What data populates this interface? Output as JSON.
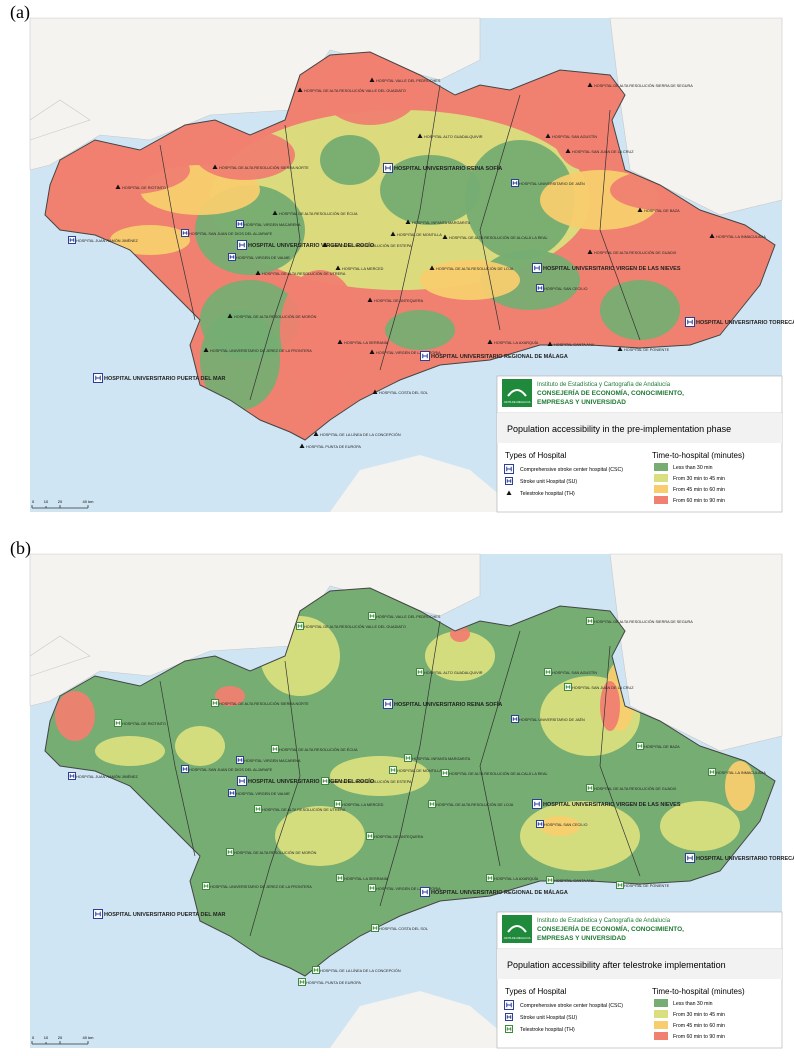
{
  "panels": [
    {
      "label": "(a)",
      "map_title": "Population accessibility in the pre-implementation phase",
      "th_marker": "triangle",
      "scenario": "pre"
    },
    {
      "label": "(b)",
      "map_title": "Population accessibility after telestroke implementation",
      "th_marker": "square",
      "scenario": "post"
    }
  ],
  "institute": {
    "line1": "Instituto de Estadística y Cartografía de Andalucía",
    "line2": "CONSEJERÍA DE ECONOMÍA, CONOCIMIENTO,",
    "line3": "EMPRESAS Y UNIVERSIDAD",
    "logo": "JUNTA DE ANDALUCIA"
  },
  "legend": {
    "types_title": "Types of Hospital",
    "types": [
      {
        "label": "Comprehensive stroke center hospital (CSC)",
        "type": "CSC"
      },
      {
        "label": "Stroke unit Hospital (SU)",
        "type": "SU"
      },
      {
        "label": "Telestroke hospital (TH)",
        "type": "TH"
      }
    ],
    "time_title": "Time-to-hospital (minutes)",
    "time": [
      {
        "label": "Less than 30 min",
        "color": "#76ad72"
      },
      {
        "label": "From 30 min to 45 min",
        "color": "#d9df7e"
      },
      {
        "label": "From 45 min to 60 min",
        "color": "#f8cd6e"
      },
      {
        "label": "From 60 min to 90 min",
        "color": "#f08070"
      }
    ]
  },
  "scale": [
    "0",
    "10",
    "20",
    "40 km"
  ],
  "hospitals": [
    {
      "name": "HOSPITAL VALLE DEL PEDROCHES",
      "type": "TH"
    },
    {
      "name": "HOSPITAL DE ALTA RESOLUCIÓN VALLE DEL GUADIATO",
      "type": "TH"
    },
    {
      "name": "HOSPITAL DE ALTA RESOLUCIÓN SIERRA DE SEGURA",
      "type": "TH"
    },
    {
      "name": "HOSPITAL ALTO GUADALQUIVIR",
      "type": "TH"
    },
    {
      "name": "HOSPITAL SAN AGUSTÍN",
      "type": "TH"
    },
    {
      "name": "HOSPITAL SAN JUAN DE LA CRUZ",
      "type": "TH"
    },
    {
      "name": "HOSPITAL UNIVERSITARIO REINA SOFÍA",
      "type": "CSC"
    },
    {
      "name": "HOSPITAL DE ALTA RESOLUCIÓN SIERRA NORTE",
      "type": "TH"
    },
    {
      "name": "HOSPITAL UNIVERSITARIO DE JAÉN",
      "type": "SU"
    },
    {
      "name": "HOSPITAL DE RIOTINTO",
      "type": "TH"
    },
    {
      "name": "HOSPITAL DE BAZA",
      "type": "TH"
    },
    {
      "name": "HOSPITAL DE ALTA RESOLUCIÓN DE ÉCIJA",
      "type": "TH"
    },
    {
      "name": "HOSPITAL INFANTA MARGARITA",
      "type": "TH"
    },
    {
      "name": "HOSPITAL DE MONTILLA",
      "type": "TH"
    },
    {
      "name": "HOSPITAL DE ALTA RESOLUCIÓN DE ALCALÁ LA REAL",
      "type": "TH"
    },
    {
      "name": "HOSPITAL LA INMACULADA",
      "type": "TH"
    },
    {
      "name": "HOSPITAL SAN JUAN DE DIOS DEL ALJARAFE",
      "type": "SU"
    },
    {
      "name": "HOSPITAL VIRGEN MACARENA",
      "type": "SU"
    },
    {
      "name": "HOSPITAL JUAN RAMÓN JIMÉNEZ",
      "type": "SU"
    },
    {
      "name": "HOSPITAL UNIVERSITARIO VIRGEN DEL ROCÍO",
      "type": "CSC"
    },
    {
      "name": "HOSPITAL VIRGEN DE VALME",
      "type": "SU"
    },
    {
      "name": "HOSPITAL DE ALTA RESOLUCIÓN DE UTRERA",
      "type": "TH"
    },
    {
      "name": "HOSPITAL DE ALTA RESOLUCIÓN DE GUADIX",
      "type": "TH"
    },
    {
      "name": "HOSPITAL DE ALTA RESOLUCIÓN DE ESTEPA",
      "type": "TH"
    },
    {
      "name": "HOSPITAL LA MERCED",
      "type": "TH"
    },
    {
      "name": "HOSPITAL DE ALTA RESOLUCIÓN DE LOJA",
      "type": "TH"
    },
    {
      "name": "HOSPITAL UNIVERSITARIO VIRGEN DE LAS NIEVES",
      "type": "CSC"
    },
    {
      "name": "HOSPITAL SAN CECILIO",
      "type": "SU"
    },
    {
      "name": "HOSPITAL DE ANTEQUERA",
      "type": "TH"
    },
    {
      "name": "HOSPITAL DE ALTA RESOLUCIÓN DE MORÓN",
      "type": "TH"
    },
    {
      "name": "HOSPITAL UNIVERSITARIO TORRECÁRDENAS",
      "type": "CSC"
    },
    {
      "name": "HOSPITAL LA SERRANÍA",
      "type": "TH"
    },
    {
      "name": "HOSPITAL UNIVERSITARIO DE JEREZ DE LA FRONTERA",
      "type": "TH"
    },
    {
      "name": "HOSPITAL VIRGEN DE LA VICTORIA",
      "type": "TH"
    },
    {
      "name": "HOSPITAL UNIVERSITARIO REGIONAL DE MÁLAGA",
      "type": "CSC"
    },
    {
      "name": "HOSPITAL LA AXARQUÍA",
      "type": "TH"
    },
    {
      "name": "HOSPITAL SANTA ANA",
      "type": "TH"
    },
    {
      "name": "HOSPITAL DE PONIENTE",
      "type": "TH"
    },
    {
      "name": "HOSPITAL UNIVERSITARIO PUERTA DEL MAR",
      "type": "CSC"
    },
    {
      "name": "HOSPITAL COSTA DEL SOL",
      "type": "TH"
    },
    {
      "name": "HOSPITAL DE LA LÍNEA DE LA CONCEPCIÓN",
      "type": "TH"
    },
    {
      "name": "HOSPITAL PUNTA DE EUROPA",
      "type": "TH"
    }
  ]
}
